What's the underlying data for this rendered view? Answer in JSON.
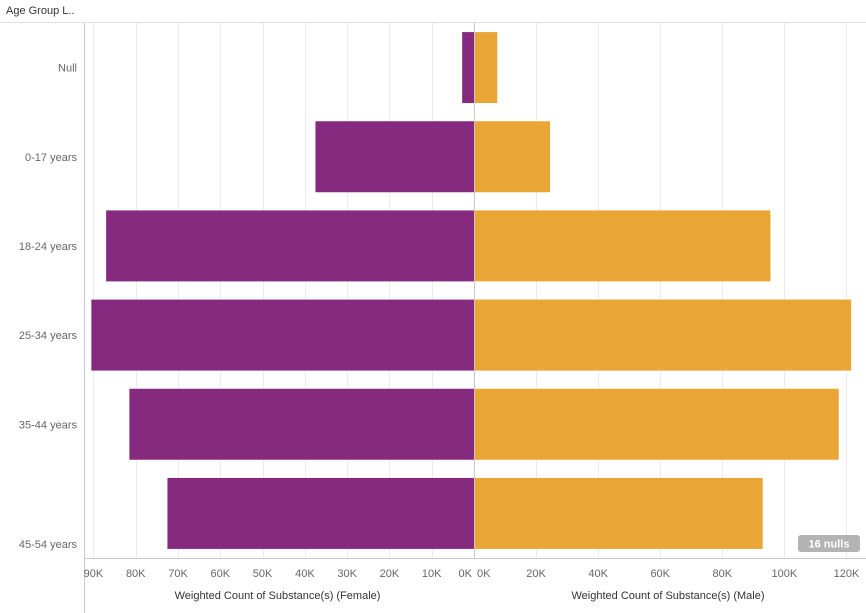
{
  "header": {
    "row_header_label": "Age Group L.."
  },
  "null_badge": "16 nulls",
  "colors": {
    "female": "#862a80",
    "male": "#e9a535",
    "grid": "#ececec",
    "axis": "#c8c8c8",
    "badge": "#b3b3b3"
  },
  "chart_data": {
    "type": "bar",
    "orientation": "horizontal-population-pyramid",
    "categories": [
      "Null",
      "0-17 years",
      "18-24 years",
      "25-34 years",
      "35-44 years",
      "45-54 years"
    ],
    "series": [
      {
        "name": "Female",
        "values": [
          2800,
          37500,
          87000,
          90500,
          81500,
          72500
        ]
      },
      {
        "name": "Male",
        "values": [
          7500,
          24500,
          95500,
          121500,
          117500,
          93000
        ]
      }
    ],
    "left_axis": {
      "title": "Weighted Count of Substance(s) (Female)",
      "range": [
        0,
        92000
      ],
      "reversed": true,
      "ticks": [
        90000,
        80000,
        70000,
        60000,
        50000,
        40000,
        30000,
        20000,
        10000,
        0
      ],
      "tick_labels": [
        "90K",
        "80K",
        "70K",
        "60K",
        "50K",
        "40K",
        "30K",
        "20K",
        "10K",
        "0K"
      ]
    },
    "right_axis": {
      "title": "Weighted Count of Substance(s) (Male)",
      "range": [
        0,
        125000
      ],
      "ticks": [
        0,
        20000,
        40000,
        60000,
        80000,
        100000,
        120000
      ],
      "tick_labels": [
        "0K",
        "20K",
        "40K",
        "60K",
        "80K",
        "100K",
        "120K"
      ]
    },
    "grid": true
  }
}
